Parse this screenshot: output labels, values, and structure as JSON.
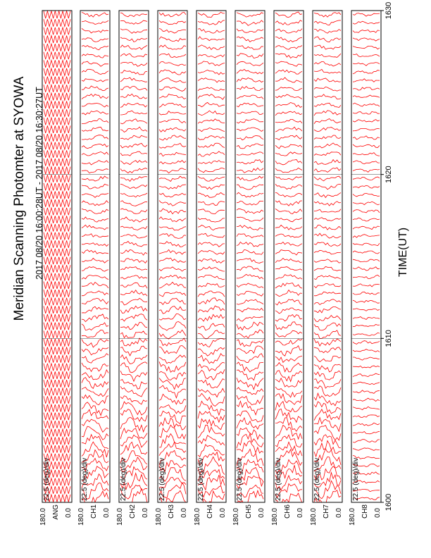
{
  "title": "Meridian Scanning Photomter at SYOWA",
  "subtitle": "2017 08/20 16:00:28UT - 2017 08/20 16:30:27UT",
  "colors": {
    "trace": "#ff0000",
    "frame": "#000000",
    "background": "#ffffff"
  },
  "chart_data": {
    "type": "line",
    "title": "Meridian Scanning Photomter at SYOWA",
    "subtitle": "2017 08/20 16:00:28UT - 2017 08/20 16:30:27UT",
    "xlabel": "TIME(UT)",
    "x_ticks": [
      "1600",
      "1610",
      "1620",
      "1630"
    ],
    "xlim": [
      1600,
      1630
    ],
    "orientation": "rotated-90",
    "panels": [
      {
        "name": "ANG",
        "ylim": [
          0.0,
          180.0
        ],
        "ytick_labels": [
          "180.0",
          "0.0"
        ],
        "scale": "22.5 (deg)/div",
        "trend": "sawtooth"
      },
      {
        "name": "CH1",
        "ylim": [
          0.0,
          180.0
        ],
        "ytick_labels": [
          "180.0",
          "0.0"
        ],
        "scale": "22.5 (deg)/div",
        "trend": "decay"
      },
      {
        "name": "CH2",
        "ylim": [
          0.0,
          180.0
        ],
        "ytick_labels": [
          "180.0",
          "0.0"
        ],
        "scale": "22.5 (deg)/div",
        "trend": "decay"
      },
      {
        "name": "CH3",
        "ylim": [
          0.0,
          180.0
        ],
        "ytick_labels": [
          "180.0",
          "0.0"
        ],
        "scale": "22.5 (deg)/div",
        "trend": "decay"
      },
      {
        "name": "CH4",
        "ylim": [
          0.0,
          180.0
        ],
        "ytick_labels": [
          "180.0",
          "0.0"
        ],
        "scale": "22.5 (deg)/div",
        "trend": "decay"
      },
      {
        "name": "CH5",
        "ylim": [
          0.0,
          180.0
        ],
        "ytick_labels": [
          "180.0",
          "0.0"
        ],
        "scale": "22.5 (deg)/div",
        "trend": "decay"
      },
      {
        "name": "CH6",
        "ylim": [
          0.0,
          180.0
        ],
        "ytick_labels": [
          "180.0",
          "0.0"
        ],
        "scale": "22.5 (deg)/div",
        "trend": "decay"
      },
      {
        "name": "CH7",
        "ylim": [
          0.0,
          180.0
        ],
        "ytick_labels": [
          "180.0",
          "0.0"
        ],
        "scale": "22.5 (deg)/div",
        "trend": "decay"
      },
      {
        "name": "CH8",
        "ylim": [
          0.0,
          180.0
        ],
        "ytick_labels": [
          "180.0",
          "0.0"
        ],
        "scale": "22.5 (deg)/div",
        "trend": "flat"
      }
    ],
    "series": [
      {
        "name": "ANG",
        "x": [
          1600,
          1630
        ],
        "y": [
          0.0,
          180.0
        ]
      },
      {
        "name": "CH1",
        "x": [
          1600,
          1630
        ],
        "y": [
          0.0,
          180.0
        ]
      },
      {
        "name": "CH2",
        "x": [
          1600,
          1630
        ],
        "y": [
          0.0,
          180.0
        ]
      },
      {
        "name": "CH3",
        "x": [
          1600,
          1630
        ],
        "y": [
          0.0,
          180.0
        ]
      },
      {
        "name": "CH4",
        "x": [
          1600,
          1630
        ],
        "y": [
          0.0,
          180.0
        ]
      },
      {
        "name": "CH5",
        "x": [
          1600,
          1630
        ],
        "y": [
          0.0,
          180.0
        ]
      },
      {
        "name": "CH6",
        "x": [
          1600,
          1630
        ],
        "y": [
          0.0,
          180.0
        ]
      },
      {
        "name": "CH7",
        "x": [
          1600,
          1630
        ],
        "y": [
          0.0,
          180.0
        ]
      },
      {
        "name": "CH8",
        "x": [
          1600,
          1630
        ],
        "y": [
          0.0,
          180.0
        ]
      }
    ]
  }
}
